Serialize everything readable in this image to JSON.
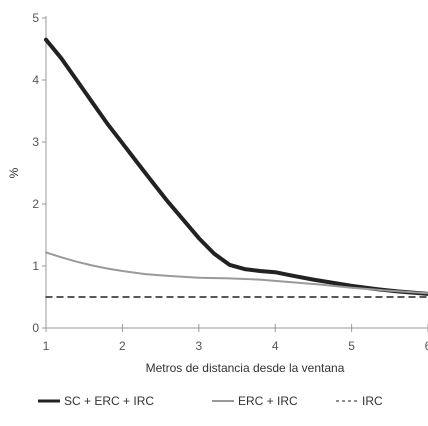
{
  "chart_data": {
    "type": "line",
    "xlabel": "Metros de distancia desde la ventana",
    "ylabel": "%",
    "xlim": [
      1,
      6
    ],
    "ylim": [
      0,
      5
    ],
    "x_ticks": [
      "1",
      "2",
      "3",
      "4",
      "5",
      "6"
    ],
    "y_ticks": [
      "0",
      "1",
      "2",
      "3",
      "4",
      "5"
    ],
    "grid": false,
    "legend_position": "bottom",
    "series": [
      {
        "name": "SC + ERC + IRC",
        "style": "solid-thick",
        "color": "#222222",
        "x": [
          1.0,
          1.2,
          1.4,
          1.6,
          1.8,
          2.0,
          2.2,
          2.4,
          2.6,
          2.8,
          3.0,
          3.2,
          3.4,
          3.6,
          3.8,
          4.0,
          4.2,
          4.5,
          4.8,
          5.0,
          5.3,
          5.6,
          6.0
        ],
        "values": [
          4.65,
          4.35,
          4.0,
          3.65,
          3.3,
          2.98,
          2.66,
          2.34,
          2.03,
          1.74,
          1.45,
          1.2,
          1.02,
          0.95,
          0.92,
          0.9,
          0.85,
          0.78,
          0.72,
          0.68,
          0.63,
          0.59,
          0.55
        ]
      },
      {
        "name": "ERC + IRC",
        "style": "solid-thin",
        "color": "#9a9a9a",
        "x": [
          1.0,
          1.2,
          1.4,
          1.6,
          1.8,
          2.0,
          2.3,
          2.6,
          3.0,
          3.4,
          3.8,
          4.2,
          4.6,
          5.0,
          5.5,
          6.0
        ],
        "values": [
          1.22,
          1.14,
          1.07,
          1.01,
          0.96,
          0.92,
          0.87,
          0.84,
          0.81,
          0.8,
          0.78,
          0.74,
          0.7,
          0.65,
          0.6,
          0.56
        ]
      },
      {
        "name": "IRC",
        "style": "dashed",
        "color": "#222222",
        "x": [
          1.0,
          6.0
        ],
        "values": [
          0.5,
          0.5
        ]
      }
    ]
  }
}
